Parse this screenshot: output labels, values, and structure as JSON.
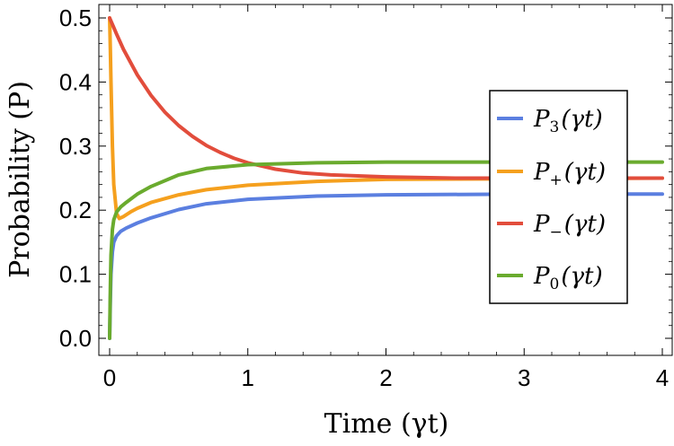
{
  "chart_data": {
    "type": "line",
    "title": "",
    "xlabel": "Time (γt)",
    "ylabel": "Probability (P)",
    "xlim": [
      0,
      4
    ],
    "ylim": [
      0,
      0.5
    ],
    "xticks": [
      "0",
      "1",
      "2",
      "3",
      "4"
    ],
    "yticks": [
      "0.0",
      "0.1",
      "0.2",
      "0.3",
      "0.4",
      "0.5"
    ],
    "grid": false,
    "legend_position": "right",
    "series": [
      {
        "name": "P3(γt)",
        "label_main": "P",
        "label_sub": "3",
        "label_arg": "(γt)",
        "color": "#5b7fe0",
        "x": [
          0,
          0.005,
          0.01,
          0.02,
          0.03,
          0.05,
          0.08,
          0.12,
          0.2,
          0.3,
          0.5,
          0.7,
          1.0,
          1.5,
          2.0,
          3.0,
          4.0
        ],
        "y": [
          0.0,
          0.06,
          0.1,
          0.135,
          0.15,
          0.16,
          0.167,
          0.172,
          0.18,
          0.188,
          0.201,
          0.21,
          0.217,
          0.222,
          0.224,
          0.225,
          0.225
        ]
      },
      {
        "name": "P+(γt)",
        "label_main": "P",
        "label_sub": "+",
        "label_arg": "(γt)",
        "color": "#f5a01e",
        "x": [
          0,
          0.005,
          0.01,
          0.02,
          0.03,
          0.05,
          0.07,
          0.1,
          0.15,
          0.2,
          0.3,
          0.5,
          0.7,
          1.0,
          1.5,
          2.0,
          3.0,
          4.0
        ],
        "y": [
          0.5,
          0.45,
          0.4,
          0.3,
          0.24,
          0.195,
          0.187,
          0.19,
          0.197,
          0.203,
          0.212,
          0.224,
          0.232,
          0.239,
          0.245,
          0.248,
          0.249,
          0.25
        ]
      },
      {
        "name": "P−(γt)",
        "label_main": "P",
        "label_sub": "−",
        "label_arg": "(γt)",
        "color": "#e24d3c",
        "x": [
          0,
          0.05,
          0.1,
          0.2,
          0.3,
          0.4,
          0.5,
          0.6,
          0.7,
          0.8,
          0.9,
          1.0,
          1.2,
          1.4,
          1.6,
          2.0,
          2.5,
          3.0,
          4.0
        ],
        "y": [
          0.5,
          0.475,
          0.451,
          0.411,
          0.379,
          0.353,
          0.332,
          0.315,
          0.301,
          0.29,
          0.281,
          0.274,
          0.264,
          0.258,
          0.255,
          0.252,
          0.25,
          0.25,
          0.25
        ]
      },
      {
        "name": "P0(γt)",
        "label_main": "P",
        "label_sub": "0",
        "label_arg": "(γt)",
        "color": "#6aab2e",
        "x": [
          0,
          0.005,
          0.01,
          0.02,
          0.03,
          0.05,
          0.08,
          0.12,
          0.2,
          0.3,
          0.5,
          0.7,
          1.0,
          1.5,
          2.0,
          3.0,
          4.0
        ],
        "y": [
          0.0,
          0.08,
          0.13,
          0.17,
          0.185,
          0.197,
          0.205,
          0.212,
          0.225,
          0.237,
          0.255,
          0.265,
          0.271,
          0.274,
          0.275,
          0.275,
          0.275
        ]
      }
    ]
  }
}
